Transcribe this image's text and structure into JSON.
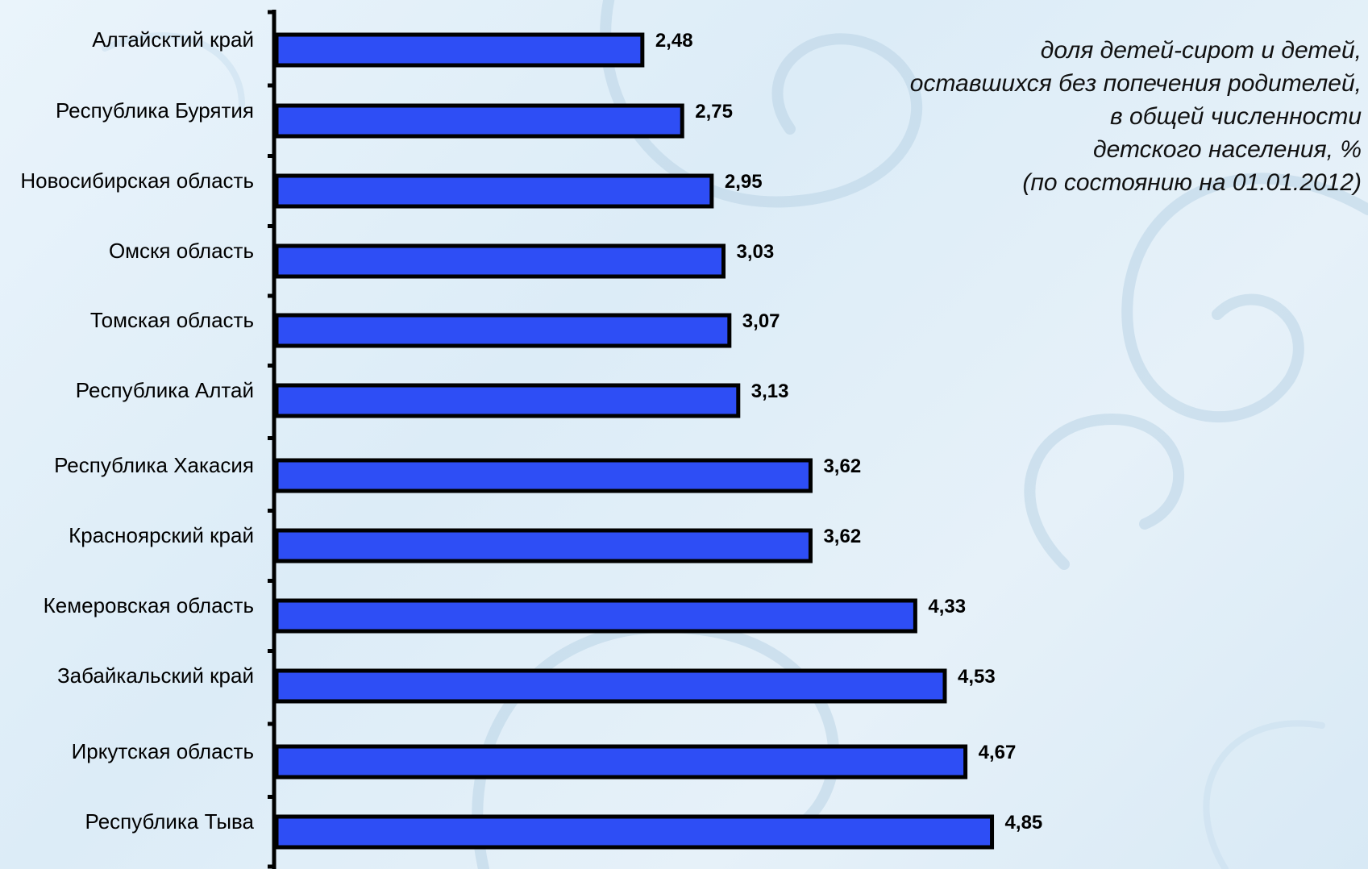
{
  "chart_data": {
    "type": "bar",
    "orientation": "horizontal",
    "categories": [
      "Алтайсктий край",
      "Республика Бурятия",
      "Новосибирская область",
      "Омскя область",
      "Томская область",
      "Республика Алтай",
      "Республика Хакасия",
      "Красноярский край",
      "Кемеровская область",
      "Забайкальский край",
      "Иркутская область",
      "Республика Тыва"
    ],
    "values": [
      2.48,
      2.75,
      2.95,
      3.03,
      3.07,
      3.13,
      3.62,
      3.62,
      4.33,
      4.53,
      4.67,
      4.85
    ],
    "value_labels": [
      "2,48",
      "2,75",
      "2,95",
      "3,03",
      "3,07",
      "3,13",
      "3,62",
      "3,62",
      "4,33",
      "4,53",
      "4,67",
      "4,85"
    ],
    "xlim": [
      0,
      5
    ],
    "bar_color": "#2e4ef5",
    "grid": false,
    "legend_lines": [
      "доля детей-сирот и детей,",
      "оставшихся без попечения родителей,",
      "в общей численности",
      "детского населения, %",
      "(по состоянию на 01.01.2012)"
    ],
    "legend_placement": "top-right"
  }
}
